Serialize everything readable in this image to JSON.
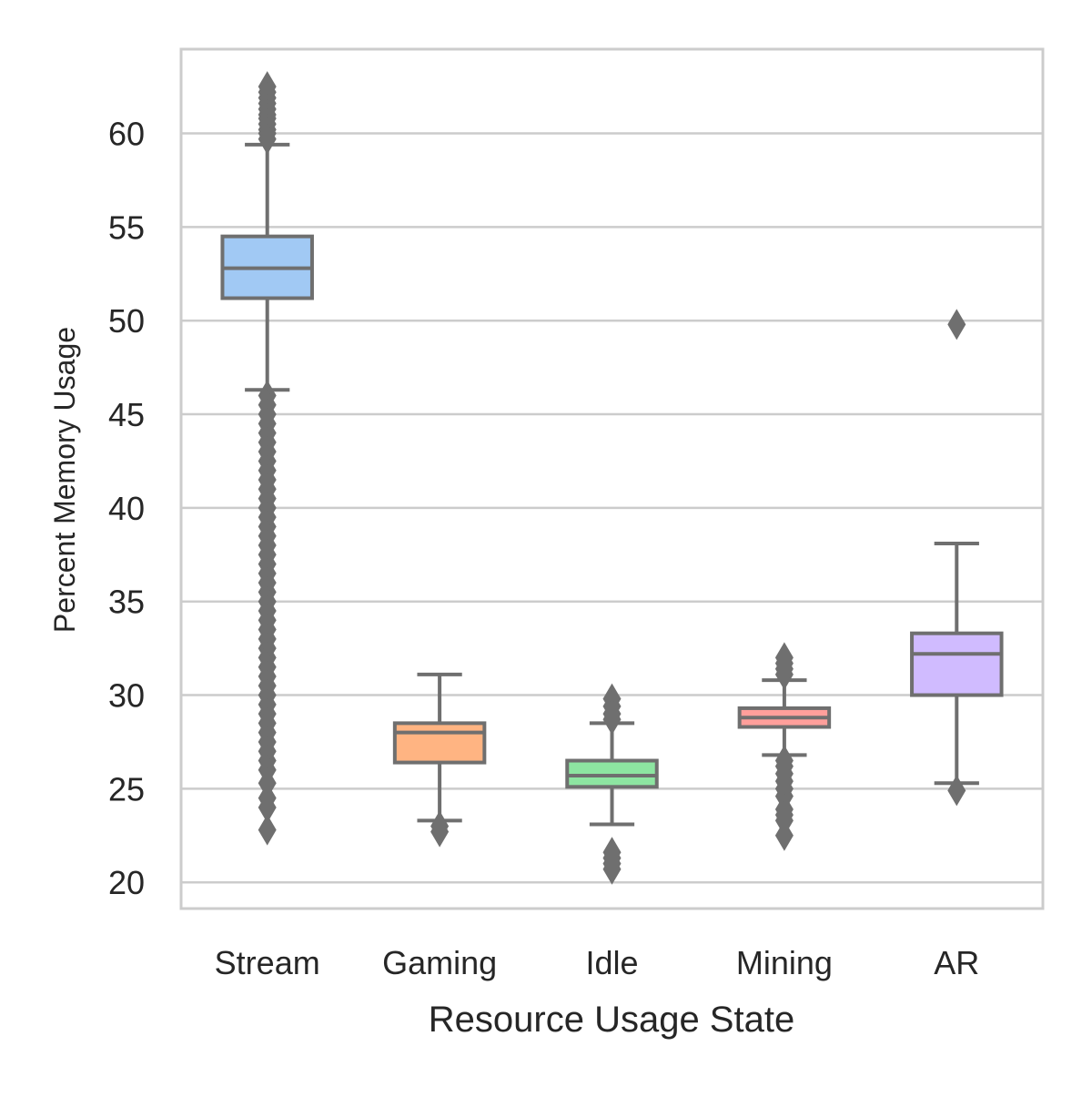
{
  "chart_data": {
    "type": "box",
    "xlabel": "Resource Usage State",
    "ylabel": "Percent Memory Usage",
    "categories": [
      "Stream",
      "Gaming",
      "Idle",
      "Mining",
      "AR"
    ],
    "ylim": [
      18.6,
      64.5
    ],
    "yticks": [
      20,
      25,
      30,
      35,
      40,
      45,
      50,
      55,
      60
    ],
    "grid": "horizontal",
    "boxes": [
      {
        "category": "Stream",
        "color": "#a1c9f4",
        "whisker_low": 46.3,
        "q1": 51.2,
        "median": 52.8,
        "q3": 54.5,
        "whisker_high": 59.4,
        "outliers": [
          62.5,
          62.2,
          61.9,
          61.6,
          61.3,
          61.0,
          60.8,
          60.5,
          60.2,
          60.0,
          59.7,
          46.0,
          45.5,
          45.0,
          44.5,
          44.0,
          43.5,
          43.0,
          42.5,
          42.0,
          41.5,
          41.0,
          40.5,
          40.0,
          39.5,
          39.0,
          38.5,
          38.0,
          37.5,
          37.0,
          36.5,
          36.0,
          35.5,
          35.0,
          34.5,
          34.0,
          33.5,
          33.0,
          32.5,
          32.0,
          31.5,
          31.0,
          30.5,
          30.0,
          29.5,
          29.0,
          28.5,
          28.0,
          27.5,
          27.0,
          26.5,
          26.0,
          25.3,
          24.5,
          24.0,
          22.8
        ]
      },
      {
        "category": "Gaming",
        "color": "#ffb482",
        "whisker_low": 23.3,
        "q1": 26.4,
        "median": 28.0,
        "q3": 28.5,
        "whisker_high": 31.1,
        "outliers": [
          23.0,
          22.7
        ]
      },
      {
        "category": "Idle",
        "color": "#8de5a1",
        "whisker_low": 23.1,
        "q1": 25.1,
        "median": 25.7,
        "q3": 26.5,
        "whisker_high": 28.5,
        "outliers": [
          29.8,
          29.4,
          29.0,
          28.7,
          21.6,
          21.3,
          21.0,
          20.7
        ]
      },
      {
        "category": "Mining",
        "color": "#ff9f9b",
        "whisker_low": 26.8,
        "q1": 28.3,
        "median": 28.8,
        "q3": 29.3,
        "whisker_high": 30.8,
        "outliers": [
          32.0,
          31.7,
          31.4,
          31.1,
          26.5,
          26.2,
          25.8,
          25.4,
          25.0,
          24.6,
          23.9,
          23.6,
          23.3,
          22.5
        ]
      },
      {
        "category": "AR",
        "color": "#d0bbff",
        "whisker_low": 25.3,
        "q1": 30.0,
        "median": 32.2,
        "q3": 33.3,
        "whisker_high": 38.1,
        "outliers": [
          49.8,
          24.9
        ]
      }
    ],
    "line_color": "#6f6f6f",
    "grid_color": "#cccccc"
  }
}
